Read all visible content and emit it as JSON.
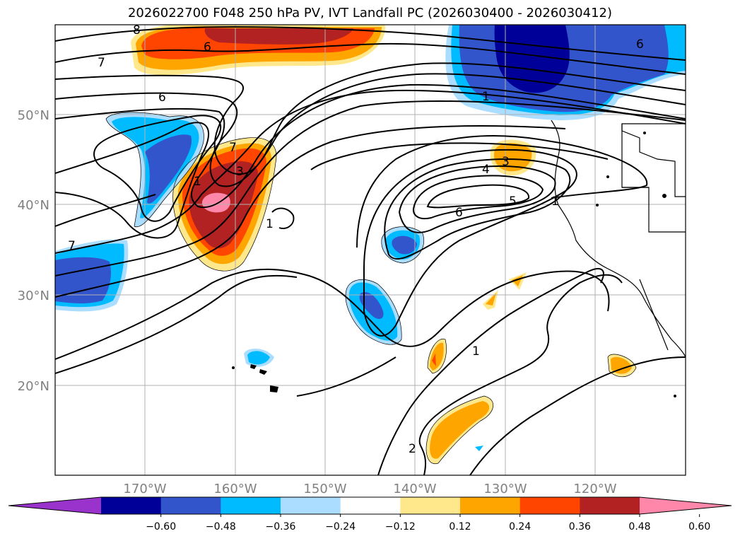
{
  "title": "2026022700 F048 250 hPa PV, IVT Landfall PC (2026030400 - 2026030412)",
  "lat_labels": [
    "50°N",
    "40°N",
    "30°N",
    "20°N"
  ],
  "lon_labels": [
    "170°W",
    "160°W",
    "150°W",
    "140°W",
    "130°W",
    "120°W"
  ],
  "colorbar": {
    "colors": [
      "#9933cc",
      "#000099",
      "#3355cc",
      "#00bbff",
      "#aaddff",
      "#ffffff",
      "#ffe88c",
      "#ffa500",
      "#ff4500",
      "#b22222",
      "#ff88aa"
    ],
    "tick_labels": [
      "−0.60",
      "−0.48",
      "−0.36",
      "−0.24",
      "−0.12",
      "0.12",
      "0.24",
      "0.36",
      "0.48",
      "0.60"
    ]
  },
  "contour_labels": [
    "8",
    "6",
    "7",
    "6",
    "6",
    "1",
    "1",
    "3",
    "7",
    "7",
    "1",
    "3",
    "4",
    "5",
    "6",
    "1",
    "1",
    "2"
  ]
}
